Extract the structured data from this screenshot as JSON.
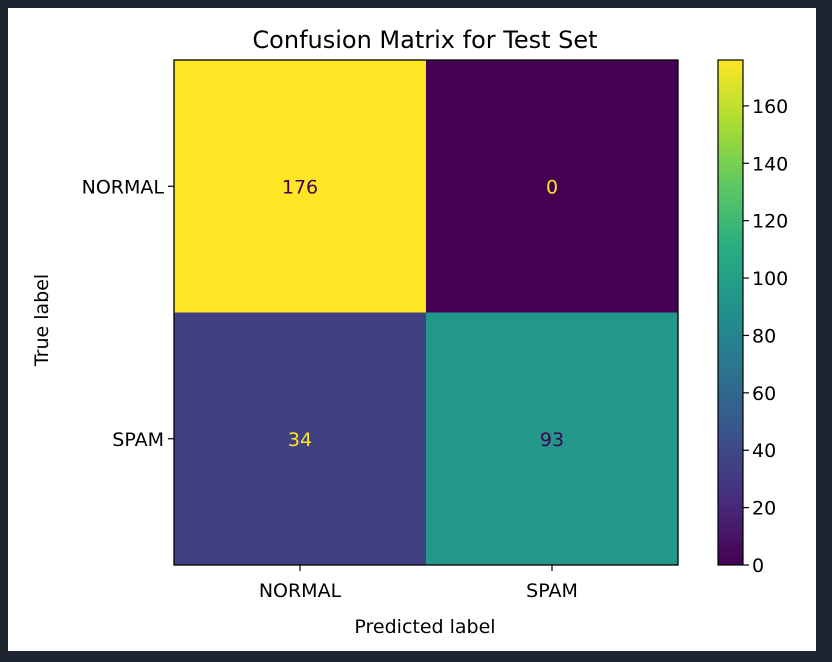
{
  "chart_data": {
    "type": "heatmap",
    "title": "Confusion Matrix for Test Set",
    "xlabel": "Predicted label",
    "ylabel": "True label",
    "x_categories": [
      "NORMAL",
      "SPAM"
    ],
    "y_categories": [
      "NORMAL",
      "SPAM"
    ],
    "values": [
      [
        176,
        0
      ],
      [
        34,
        93
      ]
    ],
    "colormap": "viridis",
    "colorbar": {
      "range": [
        0,
        176
      ],
      "ticks": [
        0,
        20,
        40,
        60,
        80,
        100,
        120,
        140,
        160
      ]
    },
    "grid": false,
    "colors": {
      "max": "#fde725",
      "min": "#440154",
      "text_on_dark": "#fde725",
      "text_on_light": "#440154"
    }
  }
}
